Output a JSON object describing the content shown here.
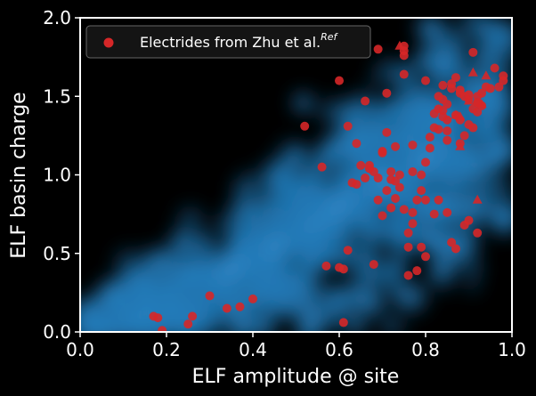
{
  "chart_data": {
    "type": "scatter",
    "title": "",
    "xlabel": "ELF amplitude @ site",
    "ylabel": "ELF basin charge",
    "xlim": [
      0.0,
      1.0
    ],
    "ylim": [
      0.0,
      2.0
    ],
    "x_ticks": [
      {
        "value": 0.0,
        "label": "0.0"
      },
      {
        "value": 0.2,
        "label": "0.2"
      },
      {
        "value": 0.4,
        "label": "0.4"
      },
      {
        "value": 0.6,
        "label": "0.6"
      },
      {
        "value": 0.8,
        "label": "0.8"
      },
      {
        "value": 1.0,
        "label": "1.0"
      }
    ],
    "y_ticks": [
      {
        "value": 0.0,
        "label": "0.0"
      },
      {
        "value": 0.5,
        "label": "0.5"
      },
      {
        "value": 1.0,
        "label": "1.0"
      },
      {
        "value": 1.5,
        "label": "1.5"
      },
      {
        "value": 2.0,
        "label": "2.0"
      }
    ],
    "grid": false,
    "background_color": "#000000",
    "legend": {
      "placement": "top-left",
      "entries": [
        {
          "label": "Electrides from Zhu et al.",
          "superscript": "Ref",
          "color": "#d62728",
          "marker": "circle"
        }
      ]
    },
    "series": [
      {
        "name": "Electrides from Zhu et al.",
        "color": "#d62728",
        "marker": "circle",
        "points": [
          [
            0.17,
            0.1
          ],
          [
            0.18,
            0.09
          ],
          [
            0.19,
            0.01
          ],
          [
            0.25,
            0.05
          ],
          [
            0.26,
            0.1
          ],
          [
            0.3,
            0.23
          ],
          [
            0.34,
            0.15
          ],
          [
            0.37,
            0.16
          ],
          [
            0.4,
            0.21
          ],
          [
            0.52,
            1.31
          ],
          [
            0.56,
            1.05
          ],
          [
            0.57,
            0.42
          ],
          [
            0.6,
            0.41
          ],
          [
            0.61,
            0.4
          ],
          [
            0.6,
            1.6
          ],
          [
            0.61,
            0.06
          ],
          [
            0.62,
            0.52
          ],
          [
            0.62,
            1.31
          ],
          [
            0.63,
            0.95
          ],
          [
            0.64,
            0.94
          ],
          [
            0.64,
            1.2
          ],
          [
            0.65,
            1.06
          ],
          [
            0.66,
            1.47
          ],
          [
            0.66,
            0.98
          ],
          [
            0.67,
            1.04
          ],
          [
            0.67,
            1.06
          ],
          [
            0.68,
            0.43
          ],
          [
            0.68,
            1.02
          ],
          [
            0.69,
            0.98
          ],
          [
            0.69,
            1.8
          ],
          [
            0.7,
            1.15
          ],
          [
            0.7,
            1.14
          ],
          [
            0.71,
            1.52
          ],
          [
            0.71,
            0.9
          ],
          [
            0.72,
            1.02
          ],
          [
            0.72,
            0.97
          ],
          [
            0.72,
            0.79
          ],
          [
            0.73,
            0.85
          ],
          [
            0.73,
            1.18
          ],
          [
            0.74,
            1.0
          ],
          [
            0.74,
            0.92
          ],
          [
            0.75,
            1.64
          ],
          [
            0.75,
            0.78
          ],
          [
            0.75,
            1.76
          ],
          [
            0.75,
            1.79
          ],
          [
            0.75,
            1.82
          ],
          [
            0.76,
            0.54
          ],
          [
            0.76,
            0.63
          ],
          [
            0.77,
            1.19
          ],
          [
            0.77,
            0.76
          ],
          [
            0.77,
            1.02
          ],
          [
            0.78,
            0.84
          ],
          [
            0.78,
            0.39
          ],
          [
            0.79,
            1.0
          ],
          [
            0.79,
            0.9
          ],
          [
            0.8,
            1.6
          ],
          [
            0.8,
            1.08
          ],
          [
            0.8,
            0.48
          ],
          [
            0.8,
            0.84
          ],
          [
            0.81,
            1.17
          ],
          [
            0.81,
            1.24
          ],
          [
            0.82,
            0.75
          ],
          [
            0.82,
            1.3
          ],
          [
            0.82,
            1.39
          ],
          [
            0.83,
            1.42
          ],
          [
            0.83,
            0.84
          ],
          [
            0.83,
            1.5
          ],
          [
            0.84,
            1.57
          ],
          [
            0.84,
            1.41
          ],
          [
            0.84,
            1.37
          ],
          [
            0.85,
            0.76
          ],
          [
            0.85,
            1.22
          ],
          [
            0.85,
            1.28
          ],
          [
            0.85,
            1.45
          ],
          [
            0.86,
            1.58
          ],
          [
            0.86,
            0.57
          ],
          [
            0.87,
            1.62
          ],
          [
            0.87,
            0.53
          ],
          [
            0.87,
            1.38
          ],
          [
            0.88,
            1.54
          ],
          [
            0.88,
            1.52
          ],
          [
            0.88,
            1.35
          ],
          [
            0.89,
            1.5
          ],
          [
            0.89,
            1.25
          ],
          [
            0.89,
            0.68
          ],
          [
            0.9,
            1.48
          ],
          [
            0.9,
            0.71
          ],
          [
            0.9,
            1.51
          ],
          [
            0.91,
            1.42
          ],
          [
            0.91,
            1.78
          ],
          [
            0.91,
            1.3
          ],
          [
            0.92,
            1.46
          ],
          [
            0.92,
            1.4
          ],
          [
            0.92,
            1.5
          ],
          [
            0.93,
            1.44
          ],
          [
            0.93,
            1.52
          ],
          [
            0.94,
            1.56
          ],
          [
            0.95,
            1.55
          ],
          [
            0.96,
            1.68
          ],
          [
            0.97,
            1.56
          ],
          [
            0.98,
            1.6
          ],
          [
            0.98,
            1.63
          ],
          [
            0.92,
            0.63
          ],
          [
            0.92,
            1.46
          ],
          [
            0.9,
            1.32
          ],
          [
            0.88,
            1.2
          ],
          [
            0.85,
            1.35
          ],
          [
            0.86,
            1.55
          ],
          [
            0.84,
            1.48
          ],
          [
            0.83,
            1.29
          ],
          [
            0.79,
            0.54
          ],
          [
            0.77,
            0.69
          ],
          [
            0.76,
            0.36
          ],
          [
            0.73,
            0.96
          ],
          [
            0.7,
            0.74
          ],
          [
            0.69,
            0.84
          ],
          [
            0.71,
            1.27
          ]
        ],
        "triangle_points": [
          [
            0.87,
            1.38
          ],
          [
            0.88,
            1.37
          ],
          [
            0.88,
            1.18
          ],
          [
            0.9,
            1.47
          ],
          [
            0.91,
            1.65
          ],
          [
            0.93,
            1.45
          ],
          [
            0.94,
            1.63
          ],
          [
            0.92,
            0.84
          ],
          [
            0.74,
            1.82
          ]
        ]
      }
    ]
  }
}
